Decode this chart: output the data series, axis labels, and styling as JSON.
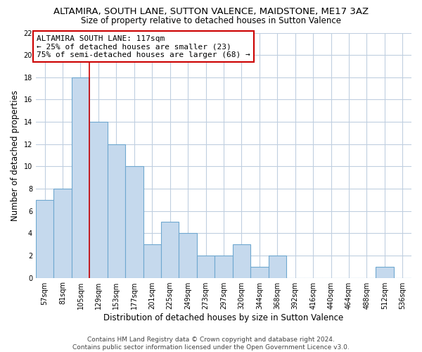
{
  "title": "ALTAMIRA, SOUTH LANE, SUTTON VALENCE, MAIDSTONE, ME17 3AZ",
  "subtitle": "Size of property relative to detached houses in Sutton Valence",
  "xlabel": "Distribution of detached houses by size in Sutton Valence",
  "ylabel": "Number of detached properties",
  "bin_labels": [
    "57sqm",
    "81sqm",
    "105sqm",
    "129sqm",
    "153sqm",
    "177sqm",
    "201sqm",
    "225sqm",
    "249sqm",
    "273sqm",
    "297sqm",
    "320sqm",
    "344sqm",
    "368sqm",
    "392sqm",
    "416sqm",
    "440sqm",
    "464sqm",
    "488sqm",
    "512sqm",
    "536sqm"
  ],
  "bar_heights": [
    7,
    8,
    18,
    14,
    12,
    10,
    3,
    5,
    4,
    2,
    2,
    3,
    1,
    2,
    0,
    0,
    0,
    0,
    0,
    1,
    0
  ],
  "bar_fill_color": "#c5d9ed",
  "bar_edge_color": "#6fa8d0",
  "property_line_color": "#cc0000",
  "annotation_text": "ALTAMIRA SOUTH LANE: 117sqm\n← 25% of detached houses are smaller (23)\n75% of semi-detached houses are larger (68) →",
  "annotation_box_color": "#ffffff",
  "annotation_box_edge": "#cc0000",
  "ylim": [
    0,
    22
  ],
  "yticks": [
    0,
    2,
    4,
    6,
    8,
    10,
    12,
    14,
    16,
    18,
    20,
    22
  ],
  "footer_text": "Contains HM Land Registry data © Crown copyright and database right 2024.\nContains public sector information licensed under the Open Government Licence v3.0.",
  "background_color": "#ffffff",
  "grid_color": "#c0cfe0",
  "title_fontsize": 9.5,
  "subtitle_fontsize": 8.5,
  "axis_label_fontsize": 8.5,
  "tick_fontsize": 7,
  "annotation_fontsize": 8,
  "footer_fontsize": 6.5
}
